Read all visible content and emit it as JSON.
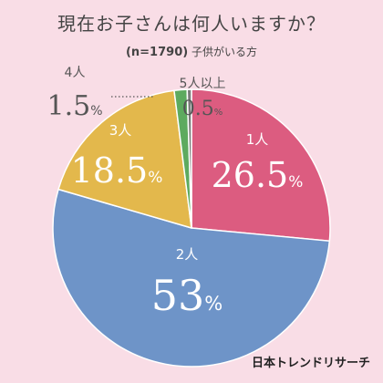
{
  "title": "現在お子さんは何人いますか？",
  "subtitle_n": "(n=1790)",
  "subtitle_label": "子供がいる方",
  "brand": "日本トレンドリサーチ",
  "colors": {
    "1人": "#dc5c80",
    "2人": "#6e94c8",
    "3人": "#e3b84c",
    "4人": "#5daa5f",
    "5人以上": "#7a7a7a"
  },
  "chart_data": {
    "type": "pie",
    "start": "12 o'clock",
    "direction": "clockwise",
    "slices": [
      {
        "label": "1人",
        "value": 26.5,
        "display": "26.5",
        "unit": "%"
      },
      {
        "label": "2人",
        "value": 53,
        "display": "53",
        "unit": "%"
      },
      {
        "label": "3人",
        "value": 18.5,
        "display": "18.5",
        "unit": "%"
      },
      {
        "label": "4人",
        "value": 1.5,
        "display": "1.5",
        "unit": "%"
      },
      {
        "label": "5人以上",
        "value": 0.5,
        "display": "0.5",
        "unit": "%"
      }
    ]
  }
}
